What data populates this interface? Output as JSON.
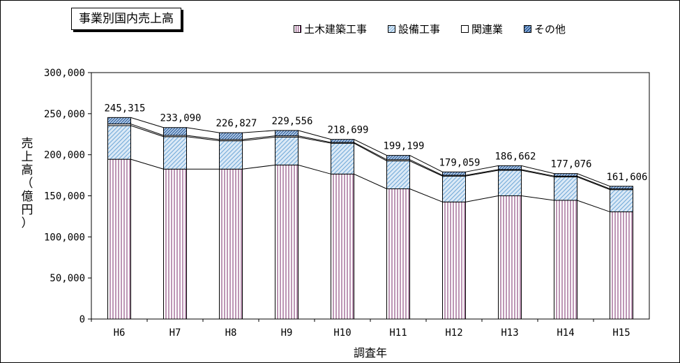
{
  "chart_data": {
    "type": "bar",
    "stacked": true,
    "title": "事業別国内売上高",
    "xlabel": "調査年",
    "ylabel": "売上高（億円）",
    "ylim": [
      0,
      300000
    ],
    "yticks": [
      "0",
      "50,000",
      "100,000",
      "150,000",
      "200,000",
      "250,000",
      "300,000"
    ],
    "ytick_values": [
      0,
      50000,
      100000,
      150000,
      200000,
      250000,
      300000
    ],
    "categories": [
      "H6",
      "H7",
      "H8",
      "H9",
      "H10",
      "H11",
      "H12",
      "H13",
      "H14",
      "H15"
    ],
    "series": [
      {
        "name": "土木建築工事",
        "values": [
          194500,
          182500,
          182500,
          187500,
          176500,
          158500,
          142500,
          150000,
          144500,
          130500
        ]
      },
      {
        "name": "設備工事",
        "values": [
          41000,
          39500,
          34500,
          34000,
          37500,
          34000,
          31500,
          31000,
          28500,
          27000
        ]
      },
      {
        "name": "関連業",
        "values": [
          2000,
          1500,
          1500,
          1500,
          1000,
          1500,
          1000,
          1000,
          1000,
          1000
        ]
      },
      {
        "name": "その他",
        "values": [
          7815,
          9590,
          8327,
          6556,
          3699,
          5199,
          4059,
          4662,
          3076,
          3106
        ]
      }
    ],
    "totals": [
      245315,
      233090,
      226827,
      229556,
      218699,
      199199,
      179059,
      186662,
      177076,
      161606
    ],
    "total_labels": [
      "245,315",
      "233,090",
      "226,827",
      "229,556",
      "218,699",
      "199,199",
      "179,059",
      "186,662",
      "177,076",
      "161,606"
    ],
    "series_lines": true,
    "legend_position": "top-right",
    "grid": false,
    "colors": {
      "construction": "#7b2d6b",
      "equipment": "#6fa8d8",
      "related": "#ffffff",
      "other": "#3a6fb0"
    }
  }
}
